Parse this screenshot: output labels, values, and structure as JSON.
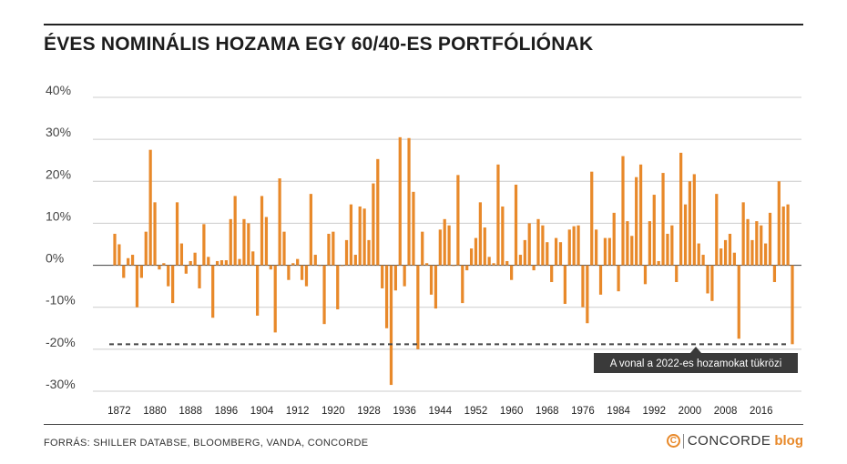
{
  "title": "ÉVES NOMINÁLIS HOZAMA EGY 60/40-ES PORTFÓLIÓNAK",
  "source": "FORRÁS: SHILLER DATABSE, BLOOMBERG, VANDA, CONCORDE",
  "brand": {
    "icon": "copyright-c-icon",
    "name": "CONCORDE",
    "suffix": "blog",
    "accent": "#e8892a"
  },
  "colors": {
    "bar": "#e8892a",
    "grid": "#cccccc",
    "annotation_bg": "#3a3a3a"
  },
  "chart_data": {
    "type": "bar",
    "title": "ÉVES NOMINÁLIS HOZAMA EGY 60/40-ES PORTFÓLIÓNAK",
    "xlabel": "",
    "ylabel": "",
    "ylim": [
      -30,
      40
    ],
    "yticks": [
      -30,
      -20,
      -10,
      0,
      10,
      20,
      30,
      40
    ],
    "ytick_labels": [
      "-30%",
      "-20%",
      "-10%",
      "0%",
      "10%",
      "20%",
      "30%",
      "40%"
    ],
    "x_start": 1871,
    "xtick_labels": [
      "1872",
      "1880",
      "1888",
      "1896",
      "1904",
      "1912",
      "1920",
      "1928",
      "1936",
      "1944",
      "1952",
      "1960",
      "1968",
      "1976",
      "1984",
      "1992",
      "2000",
      "2008",
      "2016"
    ],
    "grid": true,
    "reference_line": {
      "value": -18.8,
      "style": "dashed"
    },
    "annotation": "A vonal a 2022-es hozamokat tükrözi",
    "values": [
      7.5,
      5,
      -3,
      1.7,
      2.5,
      -10,
      -3,
      8,
      27.5,
      15,
      -1,
      0.5,
      -5,
      -9,
      15,
      5.2,
      -2,
      1,
      3,
      -5.5,
      9.8,
      2,
      -12.5,
      1,
      1.2,
      1.2,
      11,
      16.5,
      1.5,
      11,
      10,
      3.3,
      -12,
      16.5,
      11.5,
      -1,
      -16,
      20.7,
      8,
      -3.5,
      0.5,
      1.5,
      -3.5,
      -5,
      17,
      2.5,
      0,
      -14,
      7.5,
      8,
      -10.5,
      0,
      6,
      14.5,
      2.5,
      14,
      13.5,
      6,
      19.5,
      25.3,
      -5.5,
      -15,
      -28.5,
      -6,
      30.5,
      -5,
      30.3,
      17.5,
      -20,
      8,
      0.5,
      -7,
      -10.3,
      8.5,
      11,
      9.5,
      0,
      21.5,
      -9,
      -1.2,
      4,
      6.5,
      15,
      9,
      2,
      0.5,
      24,
      14,
      1,
      -3.5,
      19.2,
      2.5,
      6,
      10,
      -1.2,
      11,
      9.5,
      5.5,
      -4,
      6.5,
      5.5,
      -9.2,
      8.5,
      9.3,
      9.5,
      -10,
      -13.8,
      22.3,
      8.5,
      -7,
      6.5,
      6.5,
      12.5,
      -6.2,
      26,
      10.5,
      7,
      21,
      24,
      -4.5,
      10.5,
      16.8,
      1,
      22,
      7.5,
      9.5,
      -4,
      26.8,
      14.5,
      20,
      21.7,
      5.2,
      2.5,
      -6.7,
      -8.5,
      17,
      4,
      6,
      7.5,
      3,
      -17.5,
      15,
      11,
      6,
      10.5,
      9.5,
      5.2,
      12.5,
      -4,
      20,
      14,
      14.5,
      -18.8
    ]
  }
}
